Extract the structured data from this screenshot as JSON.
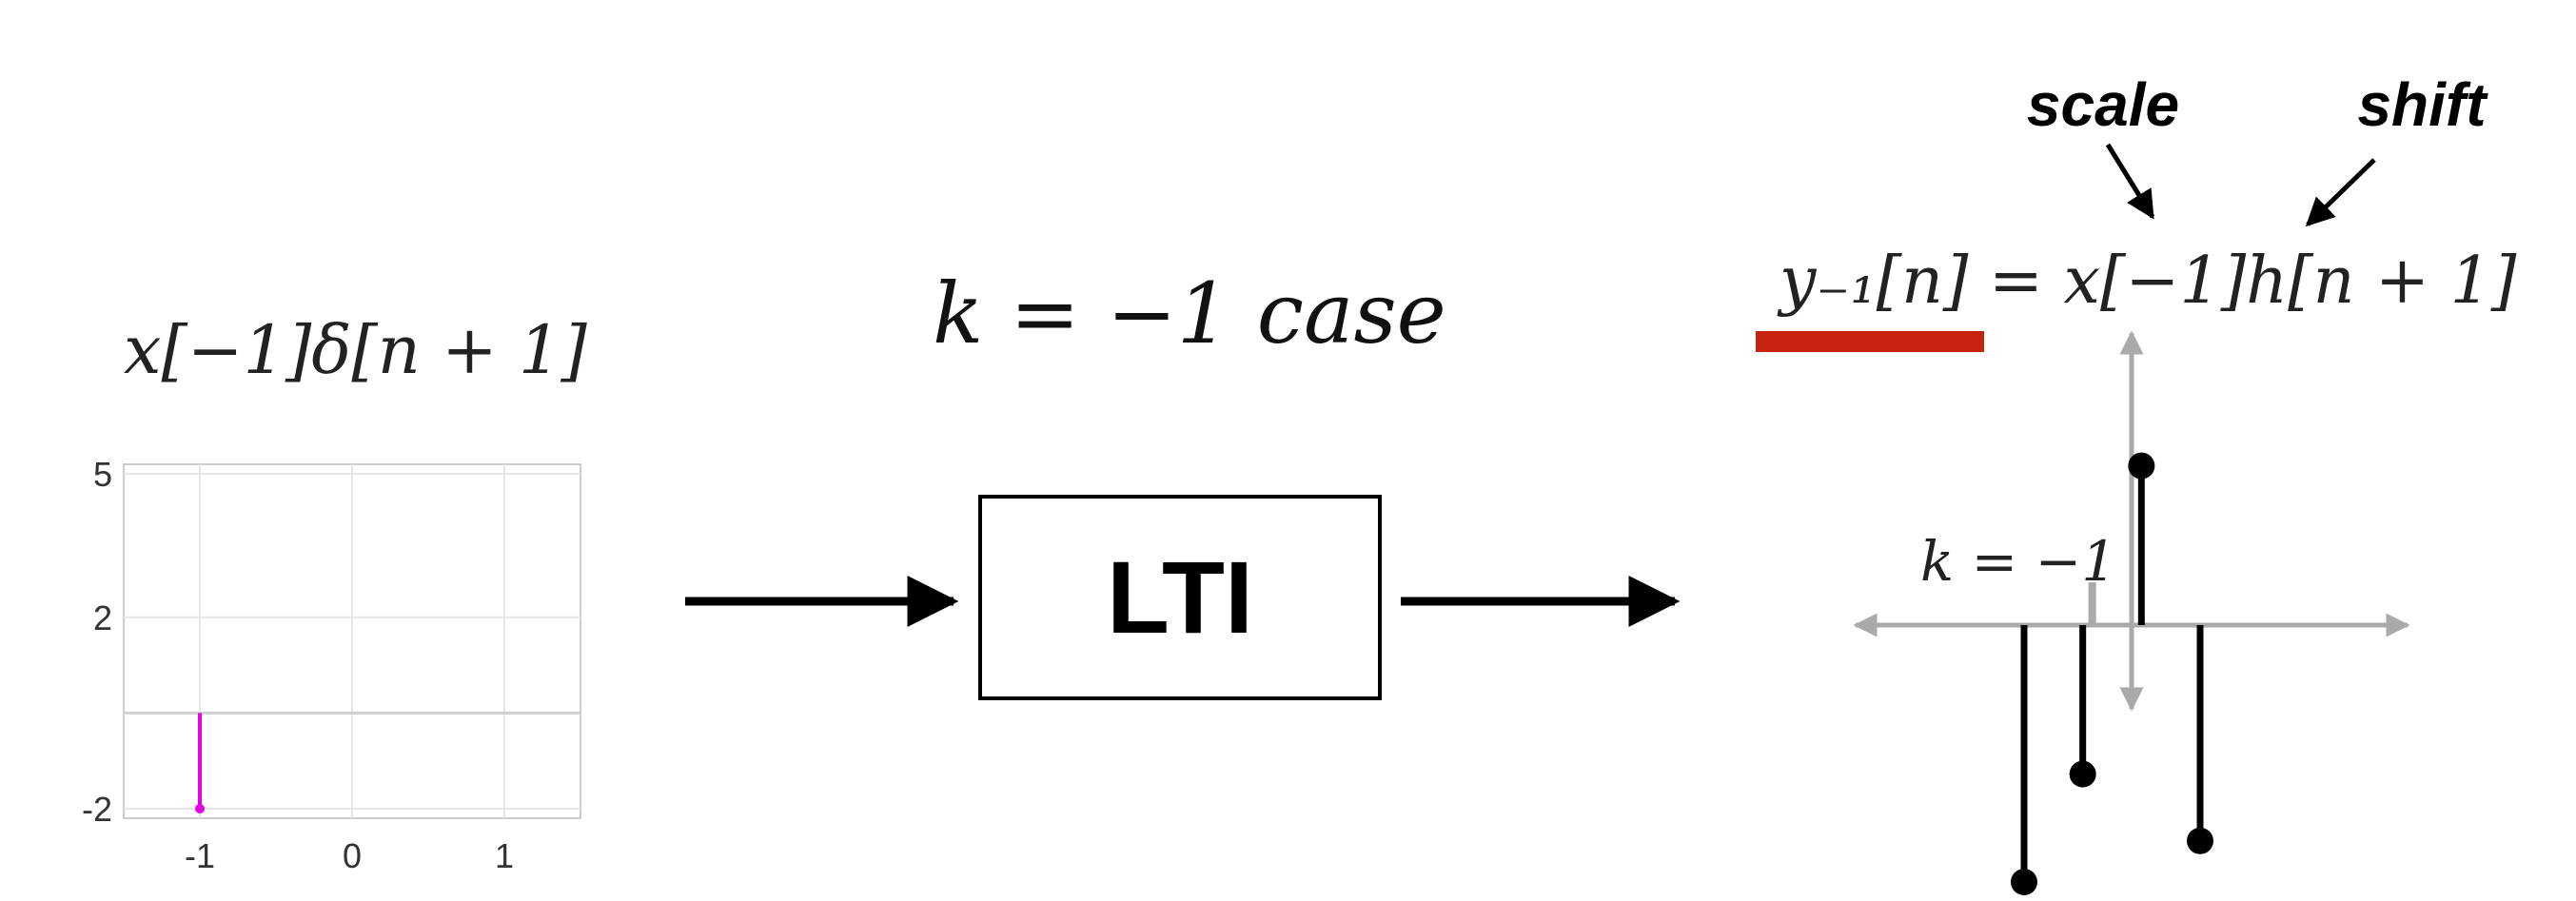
{
  "left_panel": {
    "formula": "x[−1]δ[n + 1]",
    "chart_data": {
      "type": "stem",
      "title": "x[−1]δ[n + 1]",
      "xlabel": "",
      "ylabel": "",
      "x_ticks": [
        "-1",
        "0",
        "1"
      ],
      "y_ticks": [
        "5",
        "2",
        "-2"
      ],
      "xlim": [
        -1.5,
        1.5
      ],
      "ylim": [
        -2.2,
        5.2
      ],
      "grid": true,
      "points": [
        {
          "x": -1,
          "y": -2
        }
      ],
      "color": "#e600e6"
    }
  },
  "center": {
    "case_label": "k = −1 case",
    "system_label": "LTI"
  },
  "right_panel": {
    "equation": "y₋₁[n] = x[−1]h[n + 1]",
    "annotation_scale": "scale",
    "annotation_shift": "shift",
    "k_label": "k = −1",
    "highlight_color": "#c8230f",
    "stems": [
      {
        "n": -2,
        "value": -1.0
      },
      {
        "n": -1,
        "value": -0.58
      },
      {
        "n": 0,
        "value": 0.62
      },
      {
        "n": 1,
        "value": -0.84
      }
    ]
  }
}
